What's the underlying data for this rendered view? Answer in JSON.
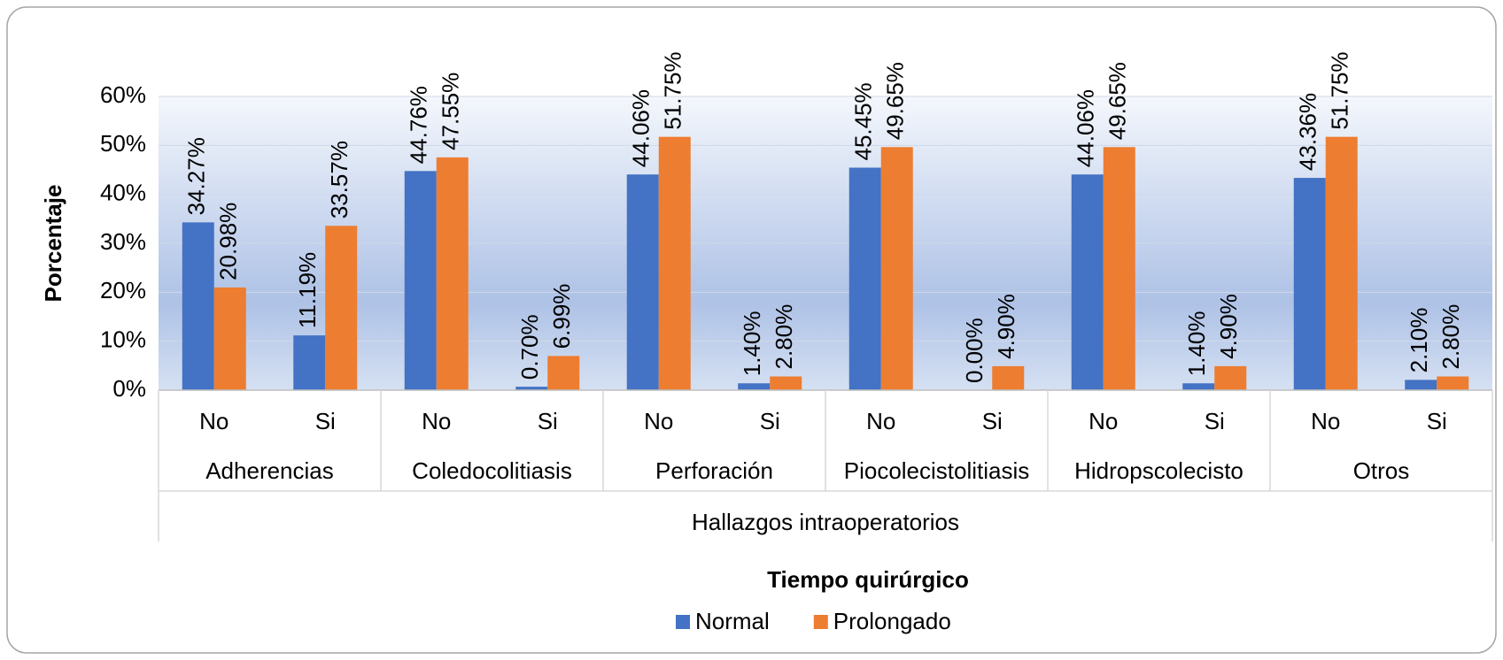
{
  "chart_data": {
    "type": "bar",
    "xlabel": "Hallazgos intraoperatorios",
    "ylabel": "Porcentaje",
    "legend_title": "Tiempo quirúrgico",
    "categories": [
      "No",
      "Si",
      "No",
      "Si",
      "No",
      "Si",
      "No",
      "Si",
      "No",
      "Si",
      "No",
      "Si"
    ],
    "groups": [
      "Adherencias",
      "Coledocolitiasis",
      "Perforación",
      "Piocolecistolitiasis",
      "Hidropscolecisto",
      "Otros"
    ],
    "series": [
      {
        "name": "Normal",
        "color": "#4472c4",
        "values": [
          34.27,
          11.19,
          44.76,
          0.7,
          44.06,
          1.4,
          45.45,
          0.0,
          44.06,
          1.4,
          43.36,
          2.1
        ],
        "value_labels": [
          "34.27%",
          "11.19%",
          "44.76%",
          "0.70%",
          "44.06%",
          "1.40%",
          "45.45%",
          "0.00%",
          "44.06%",
          "1.40%",
          "43.36%",
          "2.10%"
        ]
      },
      {
        "name": "Prolongado",
        "color": "#ed7d31",
        "values": [
          20.98,
          33.57,
          47.55,
          6.99,
          51.75,
          2.8,
          49.65,
          4.9,
          49.65,
          4.9,
          51.75,
          2.8
        ],
        "value_labels": [
          "20.98%",
          "33.57%",
          "47.55%",
          "6.99%",
          "51.75%",
          "2.80%",
          "49.65%",
          "4.90%",
          "49.65%",
          "4.90%",
          "51.75%",
          "2.80%"
        ]
      }
    ],
    "ylim": [
      0,
      60
    ],
    "yticks": [
      {
        "value": 0,
        "label": "0%"
      },
      {
        "value": 10,
        "label": "10%"
      },
      {
        "value": 20,
        "label": "20%"
      },
      {
        "value": 30,
        "label": "30%"
      },
      {
        "value": 40,
        "label": "40%"
      },
      {
        "value": 50,
        "label": "50%"
      },
      {
        "value": 60,
        "label": "60%"
      }
    ],
    "grid": true,
    "legend": "bottom"
  }
}
